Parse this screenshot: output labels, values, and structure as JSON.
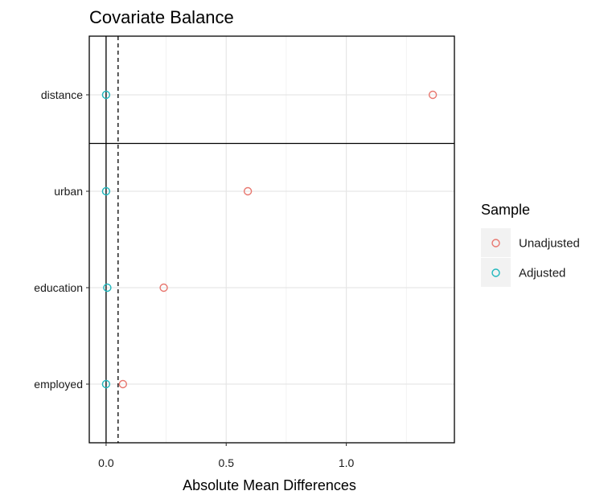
{
  "chart_data": {
    "type": "scatter",
    "title": "Covariate Balance",
    "xlabel": "Absolute Mean Differences",
    "ylabel": "",
    "x_ticks": [
      0.0,
      0.5,
      1.0
    ],
    "x_tick_labels": [
      "0.0",
      "0.5",
      "1.0"
    ],
    "xlim": [
      -0.07,
      1.45
    ],
    "threshold": 0.05,
    "categories": [
      "distance",
      "urban",
      "education",
      "employed"
    ],
    "series": [
      {
        "name": "Unadjusted",
        "color": "#e8776f",
        "values": [
          1.36,
          0.59,
          0.24,
          0.07
        ]
      },
      {
        "name": "Adjusted",
        "color": "#1fb7bd",
        "values": [
          0.0,
          0.0,
          0.005,
          0.0
        ]
      }
    ],
    "legend": {
      "title": "Sample",
      "position": "right"
    },
    "grid": true
  }
}
